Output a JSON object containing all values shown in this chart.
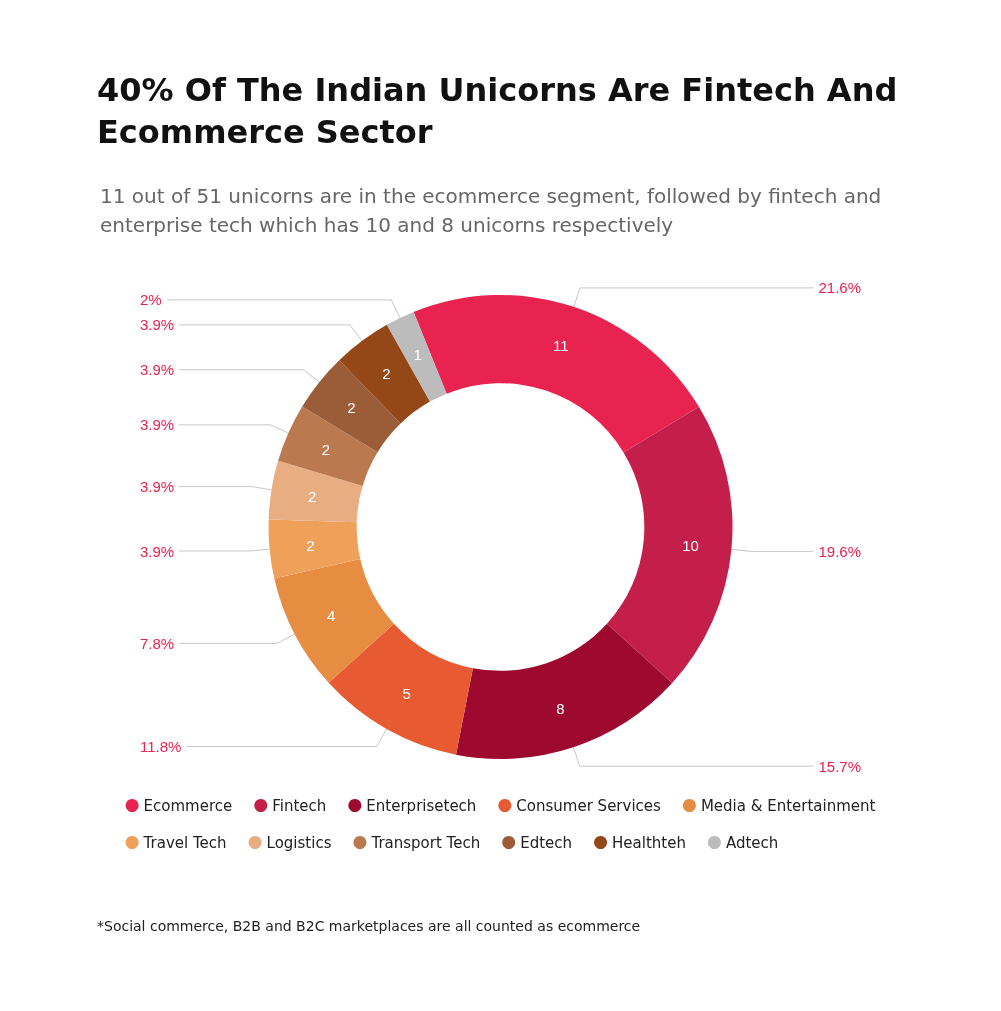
{
  "chart_data": {
    "type": "donut",
    "title": "40% Of The Indian Unicorns Are Fintech And Ecommerce Sector",
    "subtitle": "11 out of 51 unicorns are in the ecommerce segment, followed by fintech and enterprise tech which has 10 and 8 unicorns respectively",
    "categories": [
      "Ecommerce",
      "Fintech",
      "Enterprisetech",
      "Consumer Services",
      "Media & Entertainment",
      "Travel Tech",
      "Logistics",
      "Transport Tech",
      "Edtech",
      "Healthteh",
      "Adtech"
    ],
    "values": [
      11,
      10,
      8,
      5,
      4,
      2,
      2,
      2,
      2,
      2,
      1
    ],
    "colors": [
      "#e8234f",
      "#c41f4a",
      "#9e0a2f",
      "#e85a32",
      "#e68d42",
      "#efa05a",
      "#e9ad82",
      "#bb7950",
      "#9b5d38",
      "#944818",
      "#bcbcbc"
    ],
    "data_labels": true,
    "legend": "bottom",
    "annotations": [
      {
        "text": "21.6%",
        "x": "Ecommerce"
      },
      {
        "text": "19.6%",
        "x": "Fintech"
      },
      {
        "text": "15.7%",
        "x": "Enterprisetech"
      },
      {
        "text": "11.8%",
        "x": "Consumer Services"
      },
      {
        "text": "7.8%",
        "x": "Media & Entertainment"
      },
      {
        "text": "3.9%",
        "x": "Travel Tech"
      },
      {
        "text": "3.9%",
        "x": "Logistics"
      },
      {
        "text": "3.9%",
        "x": "Transport Tech"
      },
      {
        "text": "3.9%",
        "x": "Edtech"
      },
      {
        "text": "3.9%",
        "x": "Healthteh"
      },
      {
        "text": "2%",
        "x": "Adtech"
      },
      "*Social commerce, B2B and B2C marketplaces are all counted as ecommerce"
    ]
  }
}
